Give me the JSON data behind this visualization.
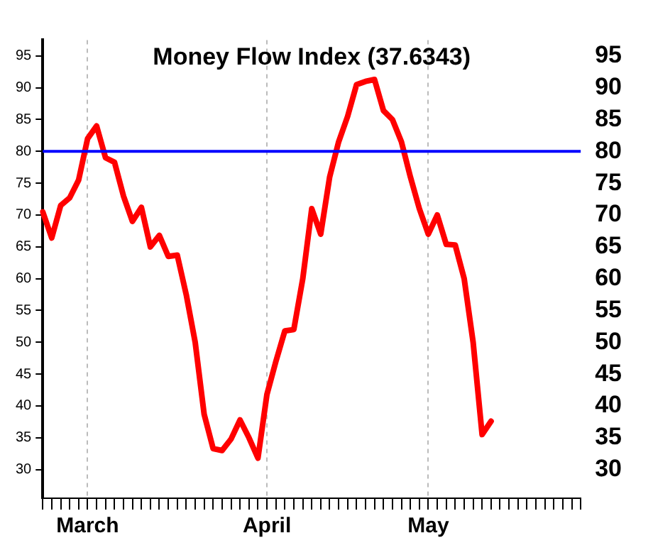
{
  "chart_data": {
    "type": "line",
    "title": "Money Flow Index (37.6343)",
    "categories": [
      null,
      null,
      null,
      null,
      null,
      "March",
      null,
      null,
      null,
      null,
      null,
      null,
      null,
      null,
      null,
      null,
      null,
      null,
      null,
      null,
      null,
      null,
      null,
      null,
      null,
      "April",
      null,
      null,
      null,
      null,
      null,
      null,
      null,
      null,
      null,
      null,
      null,
      null,
      null,
      null,
      null,
      null,
      null,
      "May",
      null,
      null,
      null,
      null,
      null,
      null,
      null,
      null,
      null,
      null,
      null,
      null,
      null,
      null,
      null,
      null,
      null
    ],
    "series": [
      {
        "color": "#ff0000",
        "values": [
          70.5,
          66.4,
          71.5,
          72.7,
          75.5,
          82,
          84,
          79,
          78.3,
          73,
          69,
          71.2,
          65,
          66.8,
          63.5,
          63.7,
          57.5,
          50,
          38.7,
          33.3,
          33,
          34.8,
          37.8,
          35,
          31.8,
          41.8,
          47,
          51.8,
          52,
          60,
          71,
          67,
          76,
          81.5,
          85.5,
          90.5,
          91,
          91.3,
          86.4,
          85,
          81.5,
          76,
          71,
          67,
          70,
          65.4,
          65.3,
          60,
          50,
          35.5,
          37.6,
          null,
          null,
          null,
          null,
          null,
          null,
          null,
          null,
          null,
          null
        ]
      }
    ],
    "ylim": [
      25.5,
      97.5
    ],
    "yticks": [
      30,
      35,
      40,
      45,
      50,
      55,
      60,
      65,
      70,
      75,
      80,
      85,
      90,
      95
    ],
    "y2lim": [
      25.5,
      97.5
    ],
    "y2ticks": [
      30,
      35,
      40,
      45,
      50,
      55,
      60,
      65,
      70,
      75,
      80,
      85,
      90,
      95
    ],
    "ref_lines": [
      {
        "axis": "y",
        "value": 80,
        "color": "#0000ff"
      }
    ],
    "grid": "x",
    "legend": false,
    "marker": "none",
    "line_style": "solid"
  }
}
